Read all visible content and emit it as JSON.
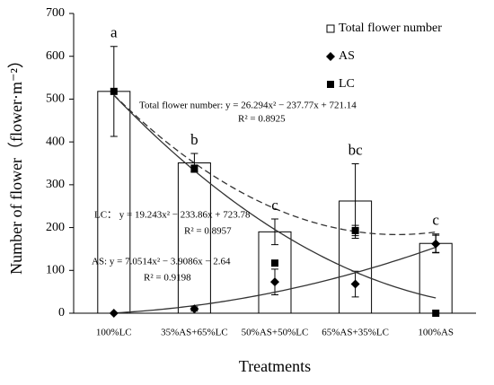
{
  "chart_data": {
    "type": "bar-with-markers",
    "y_label": "Number of flower（flower·m⁻²）",
    "x_label": "Treatments",
    "categories": [
      "100%LC",
      "35%AS+65%LC",
      "50%AS+50%LC",
      "65%AS+35%LC",
      "100%AS"
    ],
    "ylim": [
      0,
      700
    ],
    "yticks": [
      0,
      100,
      200,
      300,
      400,
      500,
      600,
      700
    ],
    "legend": "upper right",
    "series": [
      {
        "name": "Total flower number",
        "kind": "bar",
        "color": "#ffffff",
        "values": [
          518,
          351,
          190,
          262,
          163
        ],
        "errors": [
          105,
          22,
          30,
          87,
          22
        ]
      },
      {
        "name": "AS",
        "kind": "diamond",
        "color": "#000000",
        "values": [
          0,
          10,
          73,
          68,
          162
        ],
        "errors": [
          0,
          5,
          30,
          30,
          20
        ]
      },
      {
        "name": "LC",
        "kind": "square",
        "color": "#000000",
        "values": [
          518,
          338,
          117,
          193,
          0
        ],
        "errors": [
          0,
          8,
          0,
          12,
          0
        ]
      }
    ],
    "letters": [
      "a",
      "b",
      "c",
      "bc",
      "c"
    ],
    "trendlines": [
      {
        "equation": "Total flower number: y = 26.294x² − 237.77x + 721.14",
        "r2": "R² = 0.8925",
        "coefficients": [
          26.294,
          -237.77,
          721.14
        ],
        "dashed": true
      },
      {
        "equation": "LC：  y = 19.243x² − 233.86x + 723.78",
        "r2": "R² = 0.8957",
        "coefficients": [
          19.243,
          -233.86,
          723.78
        ],
        "dashed": false
      },
      {
        "equation": "AS: y = 7.0514x² − 3.9086x − 2.64",
        "r2": "R² = 0.9198",
        "coefficients": [
          7.0514,
          -3.9086,
          -2.64
        ],
        "dashed": false
      }
    ]
  }
}
